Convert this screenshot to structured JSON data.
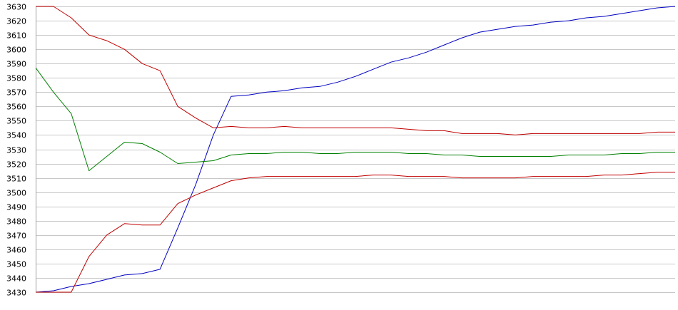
{
  "chart_data": {
    "type": "line",
    "title": "",
    "xlabel": "",
    "ylabel": "",
    "ylim": [
      3430,
      3630
    ],
    "yticks": [
      3430,
      3440,
      3450,
      3460,
      3470,
      3480,
      3490,
      3500,
      3510,
      3520,
      3530,
      3540,
      3550,
      3560,
      3570,
      3580,
      3590,
      3600,
      3610,
      3620,
      3630
    ],
    "grid": true,
    "legend": "none",
    "x": [
      0,
      5,
      10,
      15,
      20,
      25,
      30,
      35,
      40,
      45,
      50,
      55,
      60,
      65,
      70,
      75,
      80,
      85,
      90,
      95,
      100,
      105,
      110,
      115,
      120,
      125,
      130,
      135,
      140,
      145,
      150,
      155,
      160,
      165,
      170,
      175,
      180
    ],
    "series": [
      {
        "color": "#0000c0",
        "values": [
          3430,
          3431,
          3434,
          3436,
          3439,
          3442,
          3443,
          3446,
          3475,
          3505,
          3540,
          3567,
          3568,
          3570,
          3571,
          3573,
          3574,
          3577,
          3581,
          3586,
          3591,
          3594,
          3598,
          3603,
          3608,
          3612,
          3614,
          3616,
          3617,
          3619,
          3620,
          3622,
          3623,
          3625,
          3627,
          3629,
          3630
        ]
      },
      {
        "color": "#c00000",
        "values": [
          3630,
          3630,
          3622,
          3610,
          3606,
          3600,
          3590,
          3585,
          3560,
          3552,
          3545,
          3546,
          3545,
          3545,
          3546,
          3545,
          3545,
          3545,
          3545,
          3545,
          3545,
          3544,
          3543,
          3543,
          3541,
          3541,
          3541,
          3540,
          3541,
          3541,
          3541,
          3541,
          3541,
          3541,
          3541,
          3542,
          3542
        ]
      },
      {
        "color": "#008000",
        "values": [
          3587,
          3570,
          3555,
          3515,
          3525,
          3535,
          3534,
          3528,
          3520,
          3521,
          3522,
          3526,
          3527,
          3527,
          3528,
          3528,
          3527,
          3527,
          3528,
          3528,
          3528,
          3527,
          3527,
          3526,
          3526,
          3525,
          3525,
          3525,
          3525,
          3525,
          3526,
          3526,
          3526,
          3527,
          3527,
          3528,
          3528
        ]
      },
      {
        "color": "#c00000",
        "values": [
          3430,
          3430,
          3430,
          3455,
          3470,
          3478,
          3477,
          3477,
          3492,
          3498,
          3503,
          3508,
          3510,
          3511,
          3511,
          3511,
          3511,
          3511,
          3511,
          3512,
          3512,
          3511,
          3511,
          3511,
          3510,
          3510,
          3510,
          3510,
          3511,
          3511,
          3511,
          3511,
          3512,
          3512,
          3513,
          3514,
          3514
        ]
      }
    ]
  }
}
